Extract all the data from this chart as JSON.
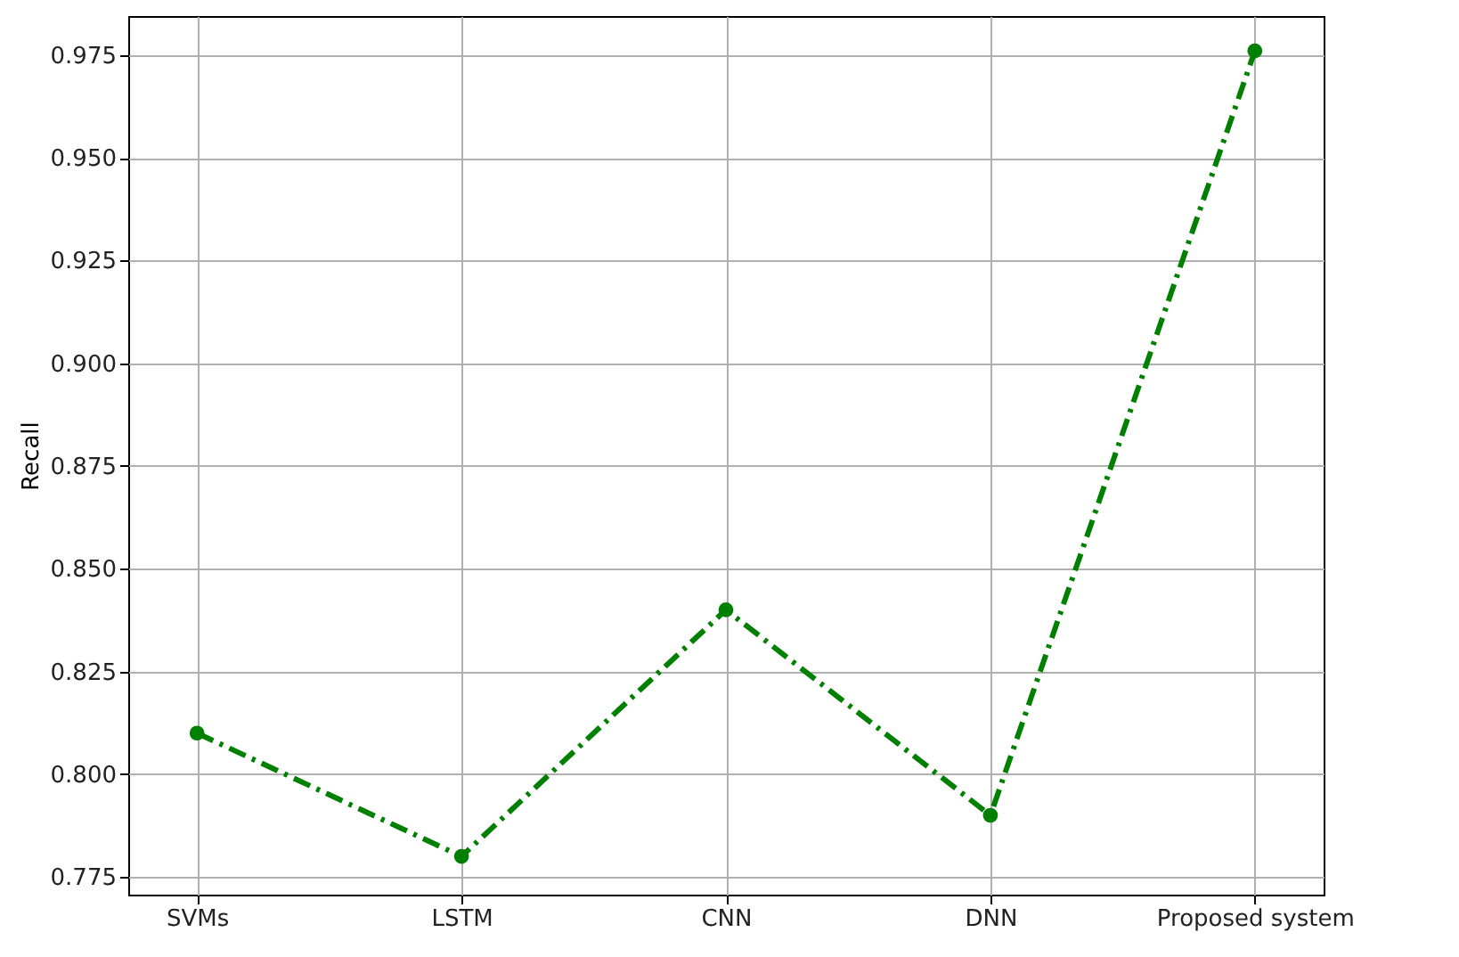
{
  "chart_data": {
    "type": "line",
    "ylabel": "Recall",
    "categories": [
      "SVMs",
      "LSTM",
      "CNN",
      "DNN",
      "Proposed system"
    ],
    "series": [
      {
        "color": "#008000",
        "values": [
          0.81,
          0.78,
          0.84,
          0.79,
          0.976
        ]
      }
    ],
    "ylim": [
      0.7707,
      0.9845
    ],
    "yticks": [
      0.775,
      {
        "value": 0.8,
        "label": "0.800"
      },
      0.825,
      {
        "value": 0.85,
        "label": "0.850"
      },
      0.875,
      {
        "value": 0.9,
        "label": "0.900"
      },
      0.925,
      {
        "value": 0.95,
        "label": "0.950"
      },
      0.975
    ],
    "grid": true,
    "marker": "circle",
    "line_style": "dashed"
  }
}
